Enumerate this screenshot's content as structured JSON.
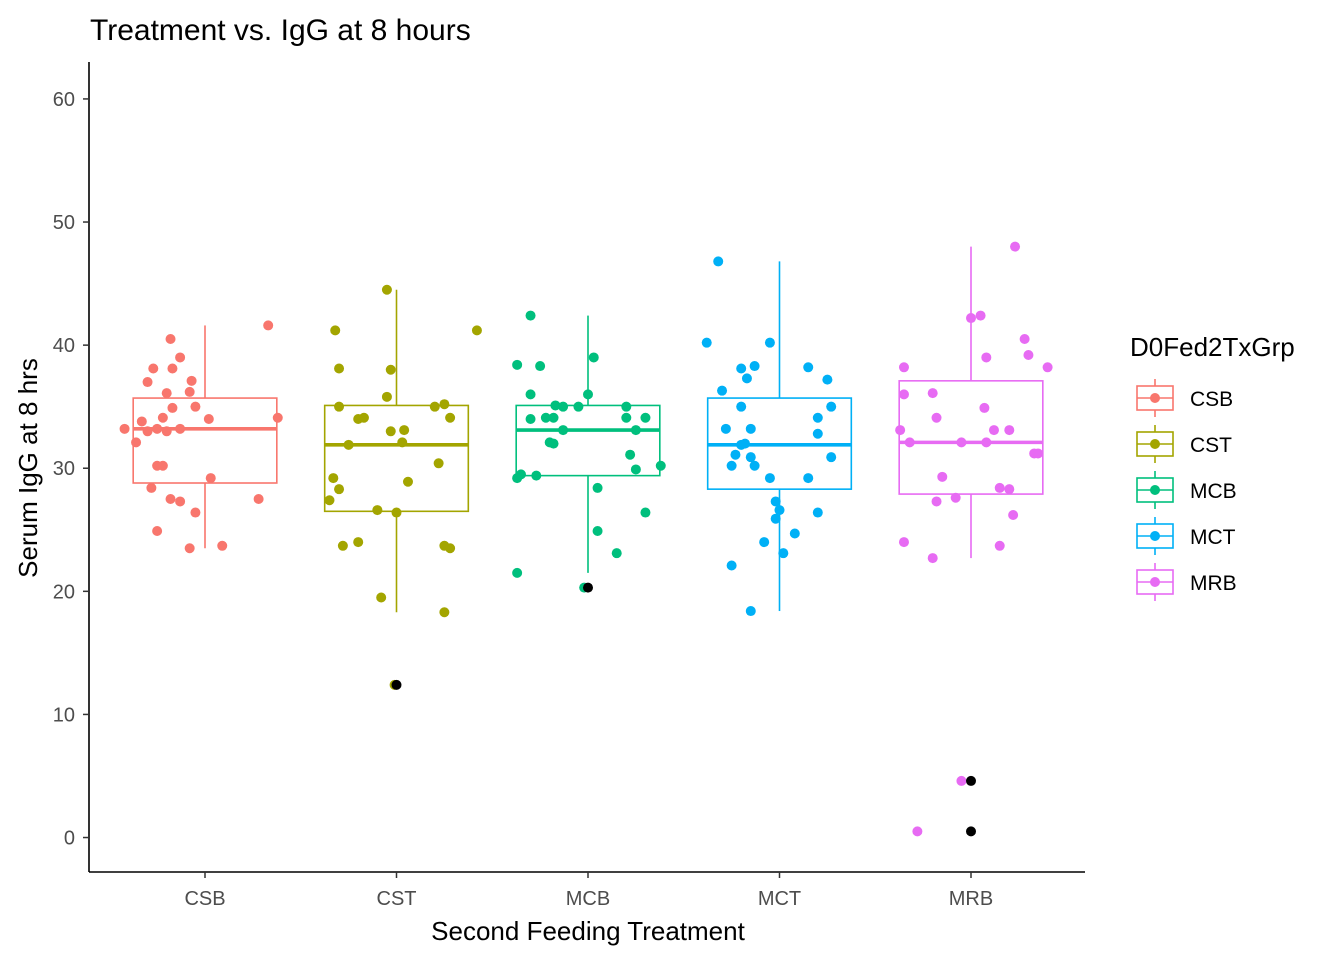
{
  "chart_data": {
    "type": "box",
    "title": "Treatment vs. IgG at 8 hours",
    "xlabel": "Second Feeding Treatment",
    "ylabel": "Serum IgG at 8 hrs",
    "ylim": [
      -2.8,
      63
    ],
    "yticks": [
      0,
      10,
      20,
      30,
      40,
      50,
      60
    ],
    "grid": false,
    "legend_position": "right",
    "legend_title": "D0Fed2TxGrp",
    "categories": [
      "CSB",
      "CST",
      "MCB",
      "MCT",
      "MRB"
    ],
    "outlier_color": "#000000",
    "groups": [
      {
        "name": "CSB",
        "color": "#F8766D",
        "q1": 28.8,
        "median": 33.2,
        "q3": 35.7,
        "whisker_low": 23.5,
        "whisker_high": 41.6,
        "outliers": [],
        "points": [
          [
            -0.42,
            33.2
          ],
          [
            -0.36,
            32.1
          ],
          [
            -0.33,
            33.8
          ],
          [
            -0.3,
            33.0
          ],
          [
            -0.25,
            33.2
          ],
          [
            -0.2,
            33.0
          ],
          [
            -0.17,
            34.9
          ],
          [
            -0.22,
            34.1
          ],
          [
            -0.2,
            36.1
          ],
          [
            -0.3,
            37.0
          ],
          [
            -0.27,
            38.1
          ],
          [
            -0.17,
            38.1
          ],
          [
            -0.13,
            39.0
          ],
          [
            -0.18,
            40.5
          ],
          [
            -0.07,
            37.1
          ],
          [
            -0.08,
            36.2
          ],
          [
            -0.13,
            33.2
          ],
          [
            -0.05,
            35.0
          ],
          [
            0.02,
            34.0
          ],
          [
            0.38,
            34.1
          ],
          [
            -0.22,
            30.2
          ],
          [
            -0.25,
            30.2
          ],
          [
            0.03,
            29.2
          ],
          [
            -0.28,
            28.4
          ],
          [
            -0.18,
            27.5
          ],
          [
            -0.13,
            27.3
          ],
          [
            -0.05,
            26.4
          ],
          [
            0.28,
            27.5
          ],
          [
            -0.25,
            24.9
          ],
          [
            -0.08,
            23.5
          ],
          [
            0.09,
            23.7
          ],
          [
            0.33,
            41.6
          ]
        ]
      },
      {
        "name": "CST",
        "color": "#A3A500",
        "q1": 26.5,
        "median": 31.9,
        "q3": 35.1,
        "whisker_low": 18.3,
        "whisker_high": 44.5,
        "outliers": [
          12.4
        ],
        "points": [
          [
            -0.32,
            41.2
          ],
          [
            -0.3,
            38.1
          ],
          [
            -0.3,
            35.0
          ],
          [
            -0.17,
            34.1
          ],
          [
            -0.2,
            34.0
          ],
          [
            -0.25,
            31.9
          ],
          [
            -0.33,
            29.2
          ],
          [
            -0.3,
            28.3
          ],
          [
            -0.35,
            27.4
          ],
          [
            -0.28,
            23.7
          ],
          [
            -0.2,
            24.0
          ],
          [
            -0.05,
            44.5
          ],
          [
            -0.03,
            38.0
          ],
          [
            -0.05,
            35.8
          ],
          [
            -0.03,
            33.0
          ],
          [
            0.04,
            33.1
          ],
          [
            0.03,
            32.1
          ],
          [
            0.06,
            28.9
          ],
          [
            -0.1,
            26.6
          ],
          [
            0.0,
            26.4
          ],
          [
            -0.08,
            19.5
          ],
          [
            0.2,
            35.0
          ],
          [
            0.25,
            35.2
          ],
          [
            0.28,
            34.1
          ],
          [
            0.22,
            30.4
          ],
          [
            0.25,
            23.7
          ],
          [
            0.28,
            23.5
          ],
          [
            0.25,
            18.3
          ],
          [
            0.42,
            41.2
          ],
          [
            -0.01,
            12.4
          ]
        ]
      },
      {
        "name": "MCB",
        "color": "#00BF7D",
        "q1": 29.4,
        "median": 33.1,
        "q3": 35.1,
        "whisker_low": 21.5,
        "whisker_high": 42.4,
        "outliers": [
          20.3
        ],
        "points": [
          [
            -0.3,
            42.4
          ],
          [
            -0.37,
            38.4
          ],
          [
            -0.25,
            38.3
          ],
          [
            -0.3,
            36.0
          ],
          [
            -0.17,
            35.1
          ],
          [
            -0.13,
            35.0
          ],
          [
            -0.22,
            34.1
          ],
          [
            -0.18,
            34.1
          ],
          [
            -0.3,
            34.0
          ],
          [
            -0.2,
            32.1
          ],
          [
            -0.18,
            32.0
          ],
          [
            -0.13,
            33.1
          ],
          [
            -0.35,
            29.5
          ],
          [
            -0.37,
            29.2
          ],
          [
            -0.27,
            29.4
          ],
          [
            -0.37,
            21.5
          ],
          [
            0.03,
            39.0
          ],
          [
            0.0,
            36.0
          ],
          [
            -0.05,
            35.0
          ],
          [
            0.05,
            28.4
          ],
          [
            -0.02,
            20.3
          ],
          [
            0.2,
            35.0
          ],
          [
            0.25,
            33.1
          ],
          [
            0.2,
            34.1
          ],
          [
            0.3,
            34.1
          ],
          [
            0.22,
            31.1
          ],
          [
            0.25,
            29.9
          ],
          [
            0.38,
            30.2
          ],
          [
            0.3,
            26.4
          ],
          [
            0.05,
            24.9
          ],
          [
            0.15,
            23.1
          ]
        ]
      },
      {
        "name": "MCT",
        "color": "#00B0F6",
        "q1": 28.3,
        "median": 31.9,
        "q3": 35.7,
        "whisker_low": 18.4,
        "whisker_high": 46.8,
        "outliers": [],
        "points": [
          [
            -0.32,
            46.8
          ],
          [
            -0.38,
            40.2
          ],
          [
            -0.2,
            38.1
          ],
          [
            -0.13,
            38.3
          ],
          [
            -0.17,
            37.3
          ],
          [
            -0.15,
            33.2
          ],
          [
            -0.2,
            35.0
          ],
          [
            -0.3,
            36.3
          ],
          [
            -0.28,
            33.2
          ],
          [
            -0.18,
            32.0
          ],
          [
            -0.2,
            31.9
          ],
          [
            -0.23,
            31.1
          ],
          [
            -0.15,
            30.9
          ],
          [
            -0.13,
            30.2
          ],
          [
            -0.25,
            30.2
          ],
          [
            -0.25,
            22.1
          ],
          [
            -0.05,
            40.2
          ],
          [
            -0.05,
            29.2
          ],
          [
            -0.02,
            27.3
          ],
          [
            0.0,
            26.6
          ],
          [
            -0.02,
            25.9
          ],
          [
            -0.08,
            24.0
          ],
          [
            0.02,
            23.1
          ],
          [
            0.08,
            24.7
          ],
          [
            -0.15,
            18.4
          ],
          [
            0.15,
            38.2
          ],
          [
            0.25,
            37.2
          ],
          [
            0.27,
            35.0
          ],
          [
            0.2,
            34.1
          ],
          [
            0.2,
            32.8
          ],
          [
            0.15,
            29.2
          ],
          [
            0.27,
            30.9
          ],
          [
            0.2,
            26.4
          ]
        ]
      },
      {
        "name": "MRB",
        "color": "#E76BF3",
        "q1": 27.9,
        "median": 32.1,
        "q3": 37.1,
        "whisker_low": 22.7,
        "whisker_high": 48.0,
        "outliers": [
          4.6,
          0.5
        ],
        "points": [
          [
            -0.35,
            38.2
          ],
          [
            -0.35,
            36.0
          ],
          [
            -0.2,
            36.1
          ],
          [
            -0.18,
            34.1
          ],
          [
            -0.37,
            33.1
          ],
          [
            -0.32,
            32.1
          ],
          [
            -0.15,
            29.3
          ],
          [
            -0.08,
            27.6
          ],
          [
            -0.18,
            27.3
          ],
          [
            -0.35,
            24.0
          ],
          [
            -0.2,
            22.7
          ],
          [
            -0.28,
            0.5
          ],
          [
            0.05,
            42.4
          ],
          [
            0.0,
            42.2
          ],
          [
            0.08,
            39.0
          ],
          [
            0.07,
            34.9
          ],
          [
            -0.05,
            32.1
          ],
          [
            0.08,
            32.1
          ],
          [
            0.12,
            33.1
          ],
          [
            0.2,
            33.1
          ],
          [
            0.15,
            28.4
          ],
          [
            0.22,
            26.2
          ],
          [
            0.4,
            38.2
          ],
          [
            0.3,
            39.2
          ],
          [
            0.28,
            40.5
          ],
          [
            0.2,
            28.3
          ],
          [
            0.33,
            31.2
          ],
          [
            0.35,
            31.2
          ],
          [
            0.15,
            23.7
          ],
          [
            0.23,
            48.0
          ],
          [
            -0.05,
            4.6
          ]
        ]
      }
    ]
  }
}
